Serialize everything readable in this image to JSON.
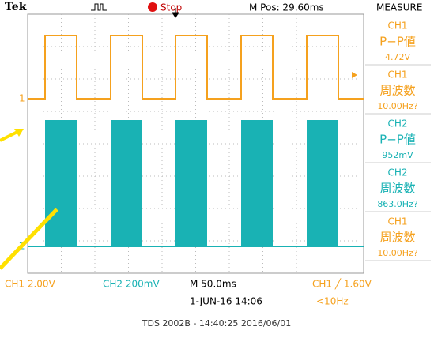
{
  "header": {
    "brand": "Tek",
    "status": "Stop",
    "position": "M Pos: 29.60ms",
    "panel_title": "MEASURE"
  },
  "channel_markers": [
    "1",
    "2"
  ],
  "measurements": [
    {
      "channel": "CH1",
      "label": "P−P値",
      "value": "4.72V"
    },
    {
      "channel": "CH1",
      "label": "周波数",
      "value": "10.00Hz?"
    },
    {
      "channel": "CH2",
      "label": "P−P値",
      "value": "952mV"
    },
    {
      "channel": "CH2",
      "label": "周波数",
      "value": "863.0Hz?"
    },
    {
      "channel": "CH1",
      "label": "周波数",
      "value": "10.00Hz?"
    }
  ],
  "status_bar": {
    "ch1_scale": "CH1  2.00V",
    "ch2_scale": "CH2  200mV",
    "timebase": "M 50.0ms",
    "trigger": "CH1 ╱ 1.60V",
    "date": "1-JUN-16 14:06",
    "trigger_freq": "<10Hz"
  },
  "footer": "TDS 2002B - 14:40:25   2016/06/01"
}
